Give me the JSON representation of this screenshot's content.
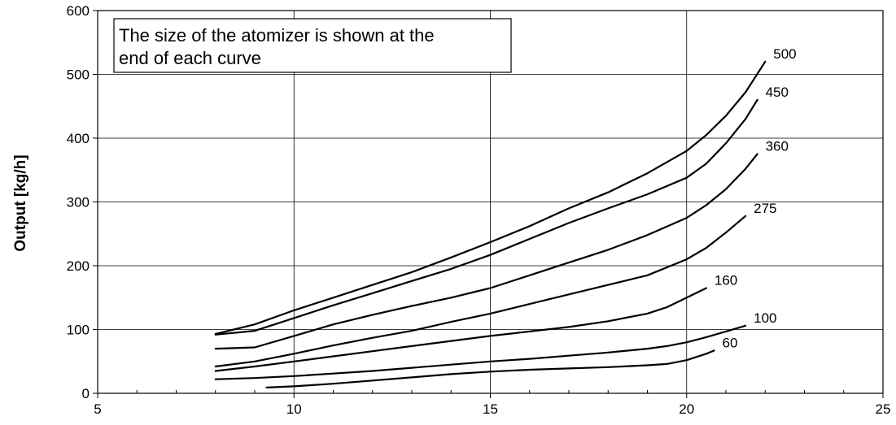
{
  "chart_data": {
    "type": "line",
    "title": "",
    "xlabel": "",
    "ylabel": "Output [kg/h]",
    "xlim": [
      5,
      25
    ],
    "ylim": [
      0,
      600
    ],
    "x_ticks": [
      "5",
      "10",
      "15",
      "20",
      "25"
    ],
    "y_ticks": [
      "0",
      "100",
      "200",
      "300",
      "400",
      "500",
      "600"
    ],
    "grid": true,
    "annotation": {
      "line1": "The size of the atomizer is shown at the",
      "line2": "end of each curve"
    },
    "series": [
      {
        "name": "500",
        "x": [
          8.0,
          9.0,
          10.0,
          11.0,
          12.0,
          13.0,
          14.0,
          15.0,
          16.0,
          17.0,
          18.0,
          19.0,
          20.0,
          20.5,
          21.0,
          21.5,
          22.0
        ],
        "y": [
          93,
          108,
          130,
          150,
          170,
          190,
          213,
          237,
          262,
          290,
          315,
          345,
          380,
          405,
          435,
          472,
          520
        ]
      },
      {
        "name": "450",
        "x": [
          8.0,
          9.0,
          10.0,
          11.0,
          12.0,
          13.0,
          14.0,
          15.0,
          16.0,
          17.0,
          18.0,
          19.0,
          20.0,
          20.5,
          21.0,
          21.5,
          21.8
        ],
        "y": [
          92,
          98,
          118,
          138,
          157,
          176,
          195,
          217,
          242,
          267,
          290,
          312,
          338,
          360,
          392,
          430,
          460
        ]
      },
      {
        "name": "360",
        "x": [
          8.0,
          9.0,
          10.0,
          11.0,
          12.0,
          13.0,
          14.0,
          15.0,
          16.0,
          17.0,
          18.0,
          19.0,
          20.0,
          20.5,
          21.0,
          21.5,
          21.8
        ],
        "y": [
          70,
          72,
          90,
          108,
          123,
          137,
          150,
          165,
          185,
          205,
          225,
          248,
          275,
          295,
          320,
          352,
          375
        ]
      },
      {
        "name": "275",
        "x": [
          8.0,
          9.0,
          10.0,
          11.0,
          12.0,
          13.0,
          14.0,
          15.0,
          16.0,
          17.0,
          18.0,
          19.0,
          20.0,
          20.5,
          21.0,
          21.5
        ],
        "y": [
          42,
          50,
          62,
          75,
          87,
          98,
          112,
          125,
          140,
          155,
          170,
          185,
          210,
          228,
          252,
          278
        ]
      },
      {
        "name": "160",
        "x": [
          8.0,
          9.0,
          10.0,
          11.0,
          12.0,
          13.0,
          14.0,
          15.0,
          16.0,
          17.0,
          18.0,
          19.0,
          19.5,
          20.0,
          20.5
        ],
        "y": [
          35,
          42,
          50,
          58,
          66,
          74,
          82,
          90,
          97,
          104,
          113,
          125,
          135,
          150,
          165
        ]
      },
      {
        "name": "100",
        "x": [
          8.0,
          9.0,
          10.0,
          11.0,
          12.0,
          13.0,
          14.0,
          15.0,
          16.0,
          17.0,
          18.0,
          19.0,
          19.5,
          20.0,
          20.5,
          21.0,
          21.5
        ],
        "y": [
          22,
          24,
          27,
          31,
          35,
          40,
          45,
          50,
          54,
          59,
          64,
          70,
          74,
          80,
          88,
          97,
          106
        ]
      },
      {
        "name": "60",
        "x": [
          9.3,
          10.0,
          11.0,
          12.0,
          13.0,
          14.0,
          15.0,
          16.0,
          17.0,
          18.0,
          19.0,
          19.5,
          20.0,
          20.5,
          20.7
        ],
        "y": [
          9,
          11,
          15,
          20,
          25,
          30,
          34,
          37,
          39,
          41,
          44,
          46,
          52,
          62,
          67
        ]
      }
    ]
  }
}
